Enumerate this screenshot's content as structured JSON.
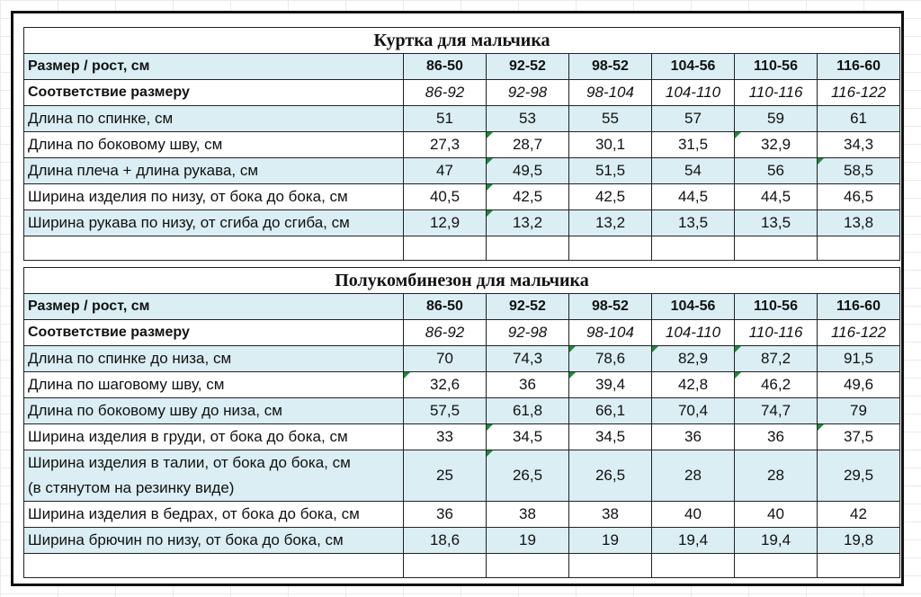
{
  "tables": [
    {
      "title": "Куртка для мальчика",
      "header_label": "Размер / рост, см",
      "sizes": [
        "86-50",
        "92-52",
        "98-52",
        "104-56",
        "110-56",
        "116-60"
      ],
      "correspondence_label": "Соответствие размеру",
      "correspondence": [
        "86-92",
        "92-98",
        "98-104",
        "104-110",
        "110-116",
        "116-122"
      ],
      "rows": [
        {
          "label": "Длина по спинке, см",
          "values": [
            "51",
            "53",
            "55",
            "57",
            "59",
            "61"
          ]
        },
        {
          "label": "Длина по боковому шву, см",
          "values": [
            "27,3",
            "28,7",
            "30,1",
            "31,5",
            "32,9",
            "34,3"
          ]
        },
        {
          "label": "Длина плеча + длина рукава, см",
          "values": [
            "47",
            "49,5",
            "51,5",
            "54",
            "56",
            "58,5"
          ]
        },
        {
          "label": "Ширина изделия по низу, от бока до бока, см",
          "values": [
            "40,5",
            "42,5",
            "42,5",
            "44,5",
            "44,5",
            "46,5"
          ]
        },
        {
          "label": "Ширина рукава по низу, от сгиба до сгиба, см",
          "values": [
            "12,9",
            "13,2",
            "13,2",
            "13,5",
            "13,5",
            "13,8"
          ]
        }
      ]
    },
    {
      "title": "Полукомбинезон для мальчика",
      "header_label": "Размер / рост, см",
      "sizes": [
        "86-50",
        "92-52",
        "98-52",
        "104-56",
        "110-56",
        "116-60"
      ],
      "correspondence_label": "Соответствие размеру",
      "correspondence": [
        "86-92",
        "92-98",
        "98-104",
        "104-110",
        "110-116",
        "116-122"
      ],
      "rows": [
        {
          "label": "Длина по спинке до низа, см",
          "values": [
            "70",
            "74,3",
            "78,6",
            "82,9",
            "87,2",
            "91,5"
          ]
        },
        {
          "label": "Длина по шаговому шву, см",
          "values": [
            "32,6",
            "36",
            "39,4",
            "42,8",
            "46,2",
            "49,6"
          ]
        },
        {
          "label": "Длина по боковому шву до низа, см",
          "values": [
            "57,5",
            "61,8",
            "66,1",
            "70,4",
            "74,7",
            "79"
          ]
        },
        {
          "label": "Ширина изделия в груди, от бока до бока, см",
          "values": [
            "33",
            "34,5",
            "34,5",
            "36",
            "36",
            "37,5"
          ]
        },
        {
          "label": "Ширина изделия в талии, от бока до бока, см",
          "label2": "(в стянутом на резинку виде)",
          "values": [
            "25",
            "26,5",
            "26,5",
            "28",
            "28",
            "29,5"
          ]
        },
        {
          "label": "Ширина изделия в бедрах, от бока до бока, см",
          "values": [
            "36",
            "38",
            "38",
            "40",
            "40",
            "42"
          ]
        },
        {
          "label": "Ширина брючин по низу, от бока до бока, см",
          "values": [
            "18,6",
            "19",
            "19",
            "19,4",
            "19,4",
            "19,8"
          ]
        }
      ]
    }
  ],
  "colors": {
    "header_fill": "#daeef3",
    "row_shade": "#daeef3",
    "border": "#222222",
    "error_mark": "#1f8a3a"
  }
}
